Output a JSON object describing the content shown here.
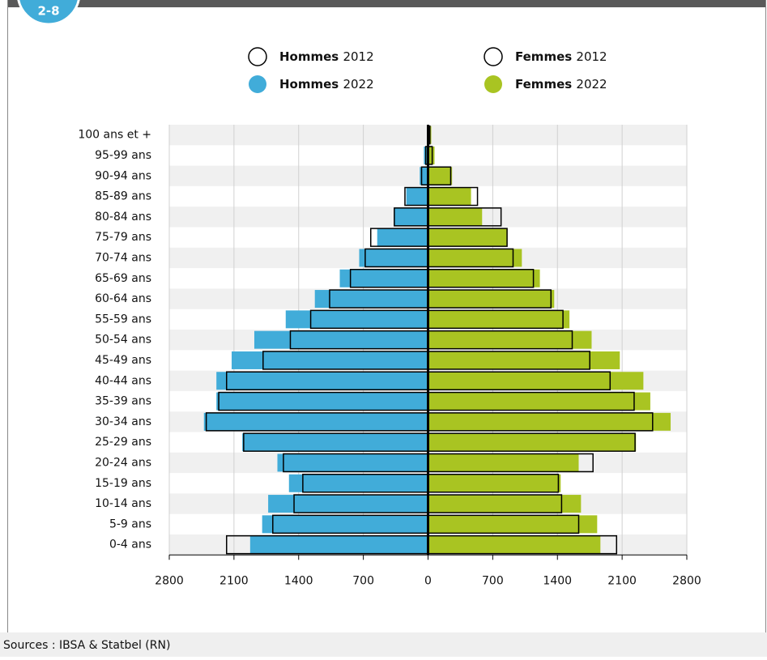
{
  "badge": "2-8",
  "chart_data": {
    "type": "pyramid",
    "categories": [
      "100 ans et +",
      "95-99 ans",
      "90-94 ans",
      "85-89 ans",
      "80-84 ans",
      "75-79 ans",
      "70-74 ans",
      "65-69 ans",
      "60-64 ans",
      "55-59 ans",
      "50-54 ans",
      "45-49 ans",
      "40-44 ans",
      "35-39 ans",
      "30-34 ans",
      "25-29 ans",
      "20-24 ans",
      "15-19 ans",
      "10-14 ans",
      "5-9 ans",
      "0-4 ans"
    ],
    "series": [
      {
        "name": "Hommes 2012",
        "side": "left",
        "style": "outline",
        "color": "#000000",
        "values": [
          5,
          25,
          70,
          250,
          365,
          620,
          680,
          840,
          1065,
          1270,
          1490,
          1785,
          2180,
          2265,
          2400,
          1995,
          1565,
          1355,
          1450,
          1680,
          2180
        ]
      },
      {
        "name": "Hommes 2022",
        "side": "left",
        "style": "filled",
        "color": "#41acd9",
        "values": [
          10,
          45,
          90,
          235,
          370,
          550,
          745,
          955,
          1225,
          1540,
          1880,
          2125,
          2290,
          2290,
          2425,
          2010,
          1630,
          1505,
          1730,
          1795,
          1925
        ]
      },
      {
        "name": "Femmes 2012",
        "side": "right",
        "style": "outline",
        "color": "#000000",
        "values": [
          20,
          45,
          245,
          535,
          790,
          855,
          920,
          1140,
          1330,
          1460,
          1560,
          1750,
          1970,
          2230,
          2430,
          2240,
          1785,
          1410,
          1445,
          1630,
          2040
        ]
      },
      {
        "name": "Femmes 2022",
        "side": "right",
        "style": "filled",
        "color": "#a9c422",
        "values": [
          35,
          70,
          260,
          465,
          585,
          860,
          1015,
          1210,
          1365,
          1530,
          1770,
          2075,
          2330,
          2405,
          2625,
          2250,
          1630,
          1435,
          1655,
          1830,
          1865
        ]
      }
    ],
    "xlim": [
      -2800,
      2800
    ],
    "xticks": [
      {
        "value": -2800,
        "label": "2800"
      },
      {
        "value": -2100,
        "label": "2100"
      },
      {
        "value": -1400,
        "label": "1400"
      },
      {
        "value": -700,
        "label": "700"
      },
      0,
      700,
      1400,
      2100,
      2800
    ],
    "grid": true
  },
  "footer": "Sources : IBSA & Statbel (RN)"
}
